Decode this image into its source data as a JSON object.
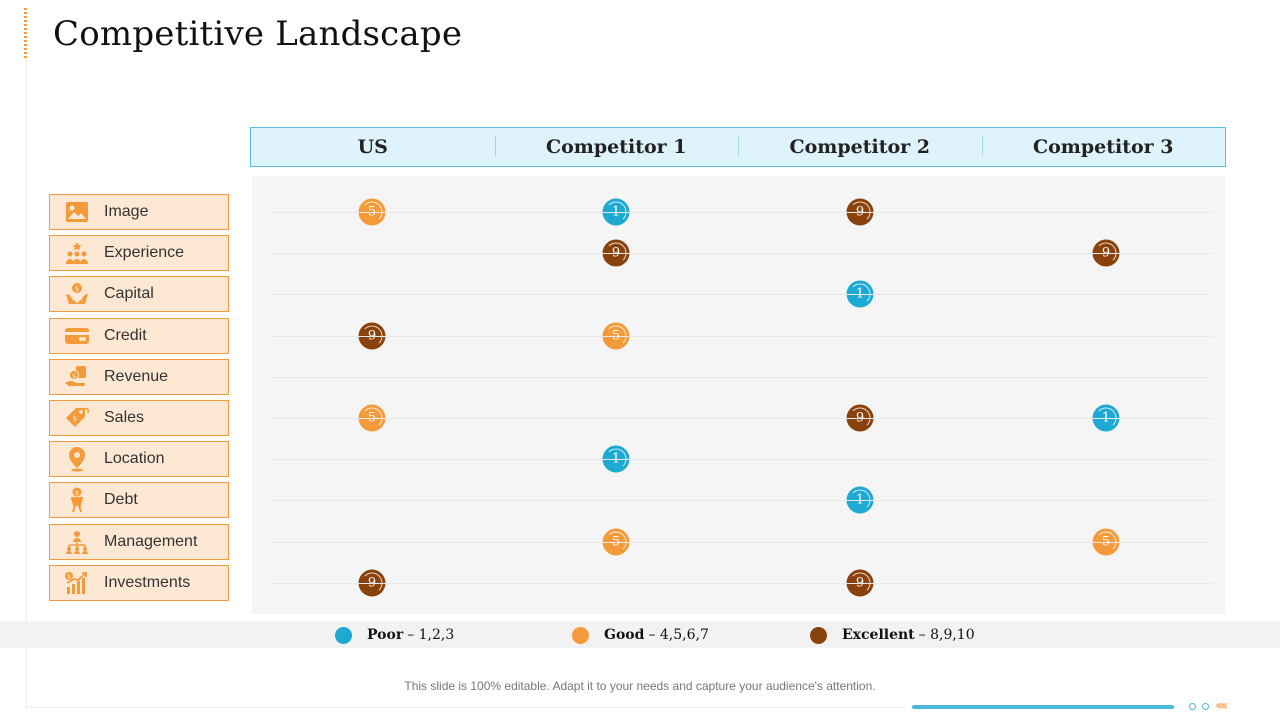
{
  "title": "Competitive Landscape",
  "columns": [
    "US",
    "Competitor 1",
    "Competitor 2",
    "Competitor 3"
  ],
  "categories": [
    {
      "label": "Image",
      "icon": "image-icon"
    },
    {
      "label": "Experience",
      "icon": "team-icon"
    },
    {
      "label": "Capital",
      "icon": "money-hand-icon"
    },
    {
      "label": "Credit",
      "icon": "credit-card-icon"
    },
    {
      "label": "Revenue",
      "icon": "revenue-hand-icon"
    },
    {
      "label": "Sales",
      "icon": "price-tag-icon"
    },
    {
      "label": "Location",
      "icon": "location-pin-icon"
    },
    {
      "label": "Debt",
      "icon": "debt-person-icon"
    },
    {
      "label": "Management",
      "icon": "hierarchy-icon"
    },
    {
      "label": "Investments",
      "icon": "growth-chart-icon"
    }
  ],
  "ratings": [
    [
      "5",
      "1",
      "9",
      ""
    ],
    [
      "",
      "9",
      "",
      "9"
    ],
    [
      "",
      "",
      "1",
      ""
    ],
    [
      "9",
      "5",
      "",
      ""
    ],
    [
      "",
      "",
      "",
      ""
    ],
    [
      "5",
      "",
      "9",
      "1"
    ],
    [
      "",
      "1",
      "",
      ""
    ],
    [
      "",
      "",
      "1",
      ""
    ],
    [
      "",
      "5",
      "",
      "5"
    ],
    [
      "9",
      "",
      "9",
      ""
    ]
  ],
  "legend": [
    {
      "name": "Poor",
      "range": "– 1,2,3",
      "color": "#1ea9d3"
    },
    {
      "name": "Good",
      "range": "– 4,5,6,7",
      "color": "#f39a3b"
    },
    {
      "name": "Excellent",
      "range": "– 8,9,10",
      "color": "#8a420d"
    }
  ],
  "footer": "This slide is 100% editable. Adapt it to your needs and capture your audience's attention.",
  "colors": {
    "accent": "#f39a3b",
    "blue": "#1ea9d3",
    "brown": "#8a420d"
  }
}
